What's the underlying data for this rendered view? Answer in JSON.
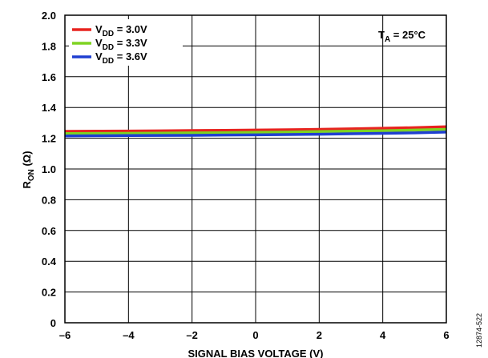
{
  "chart_data": {
    "type": "line",
    "xlabel": "SIGNAL BIAS VOLTAGE (V)",
    "ylabel": {
      "main": "R",
      "sub": "ON",
      "unit": " (Ω)"
    },
    "xlim": [
      -6,
      6
    ],
    "ylim": [
      0,
      2.0
    ],
    "xticks": [
      -6,
      -4,
      -2,
      0,
      2,
      4,
      6
    ],
    "xtick_labels": [
      "–6",
      "–4",
      "–2",
      "0",
      "2",
      "4",
      "6"
    ],
    "yticks": [
      0,
      0.2,
      0.4,
      0.6,
      0.8,
      1.0,
      1.2,
      1.4,
      1.6,
      1.8,
      2.0
    ],
    "ytick_labels": [
      "0",
      "0.2",
      "0.4",
      "0.6",
      "0.8",
      "1.0",
      "1.2",
      "1.4",
      "1.6",
      "1.8",
      "2.0"
    ],
    "grid": true,
    "legend_position": "top-left",
    "annotation": {
      "main": "T",
      "sub": "A",
      "rest": " = 25°C"
    },
    "figure_id": "12874-522",
    "series": [
      {
        "legend_main": "V",
        "legend_sub": "DD",
        "legend_rest": " = 3.0V",
        "color": "#e8231f",
        "x": [
          -6,
          -5,
          -4,
          -3,
          -2,
          -1,
          0,
          1,
          2,
          3,
          4,
          5,
          6
        ],
        "y": [
          1.245,
          1.246,
          1.247,
          1.248,
          1.25,
          1.251,
          1.253,
          1.255,
          1.258,
          1.261,
          1.265,
          1.269,
          1.275
        ]
      },
      {
        "legend_main": "V",
        "legend_sub": "DD",
        "legend_rest": " = 3.3V",
        "color": "#7ed321",
        "x": [
          -6,
          -5,
          -4,
          -3,
          -2,
          -1,
          0,
          1,
          2,
          3,
          4,
          5,
          6
        ],
        "y": [
          1.23,
          1.231,
          1.232,
          1.233,
          1.235,
          1.236,
          1.238,
          1.24,
          1.243,
          1.246,
          1.249,
          1.253,
          1.258
        ]
      },
      {
        "legend_main": "V",
        "legend_sub": "DD",
        "legend_rest": " = 3.6V",
        "color": "#1f3fd1",
        "x": [
          -6,
          -5,
          -4,
          -3,
          -2,
          -1,
          0,
          1,
          2,
          3,
          4,
          5,
          6
        ],
        "y": [
          1.215,
          1.216,
          1.217,
          1.218,
          1.219,
          1.221,
          1.222,
          1.224,
          1.226,
          1.229,
          1.232,
          1.235,
          1.24
        ]
      }
    ]
  }
}
